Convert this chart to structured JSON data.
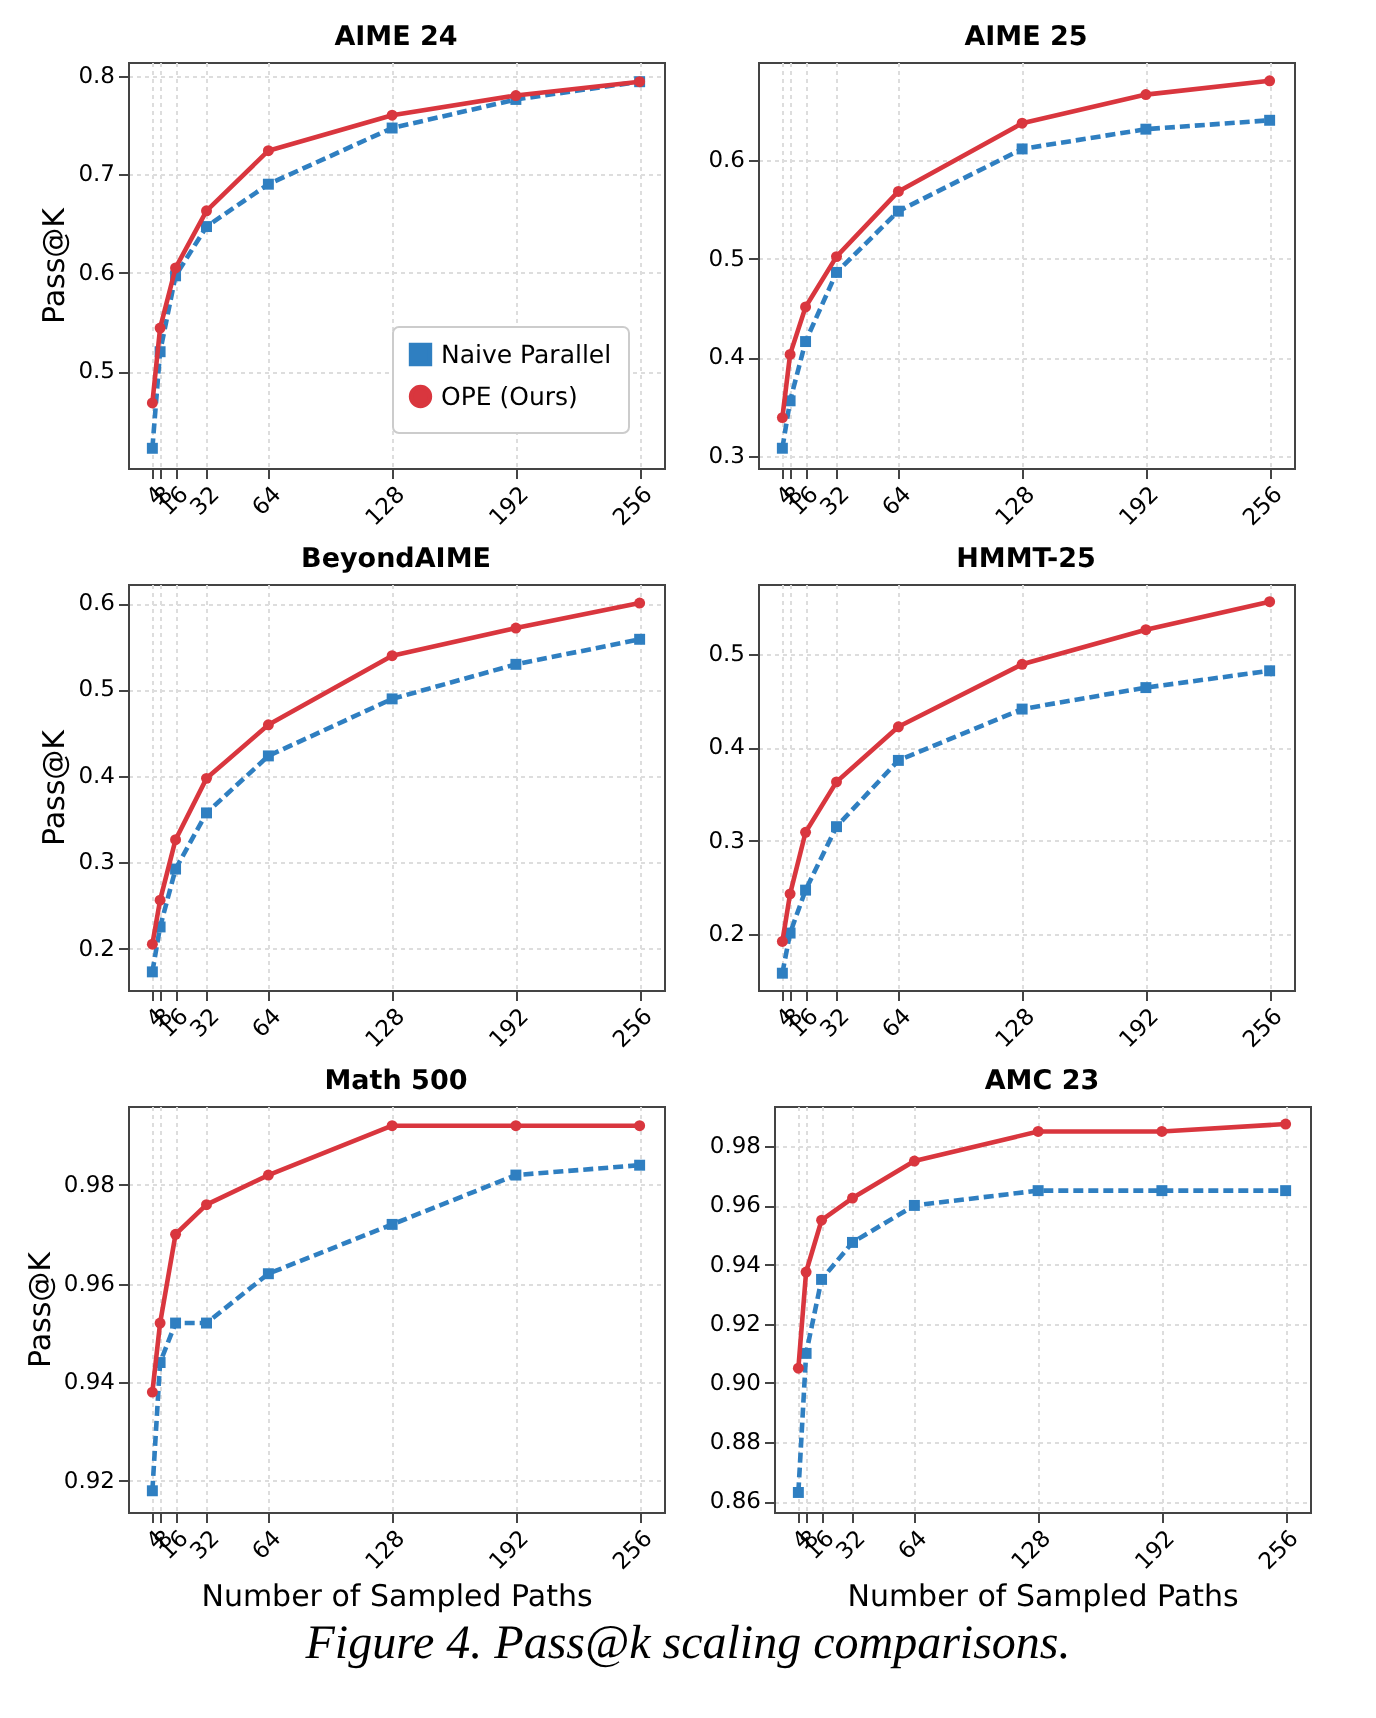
{
  "chart_data": [
    {
      "type": "line",
      "title": "AIME 24",
      "ylabel": "Pass@K",
      "x": [
        4,
        8,
        16,
        32,
        64,
        128,
        192,
        256
      ],
      "xlim": [
        -8.6,
        268.6
      ],
      "xticks": [
        4,
        8,
        16,
        32,
        64,
        128,
        192,
        256
      ],
      "ylim": [
        0.402,
        0.814
      ],
      "yticks": [
        0.5,
        0.6,
        0.7,
        0.8
      ],
      "grid": true,
      "legend": "bottom right",
      "series": [
        {
          "name": "Naive Parallel",
          "color": "#2f7fc1",
          "marker": "square",
          "line_style": "dashed",
          "values": [
            0.422,
            0.52,
            0.597,
            0.647,
            0.69,
            0.747,
            0.776,
            0.794
          ]
        },
        {
          "name": "OPE (Ours)",
          "color": "#d9363e",
          "marker": "circle",
          "line_style": "solid",
          "values": [
            0.468,
            0.544,
            0.605,
            0.663,
            0.724,
            0.76,
            0.78,
            0.794
          ]
        }
      ]
    },
    {
      "type": "line",
      "title": "AIME 25",
      "x": [
        4,
        8,
        16,
        32,
        64,
        128,
        192,
        256
      ],
      "xlim": [
        -8.6,
        268.6
      ],
      "xticks": [
        4,
        8,
        16,
        32,
        64,
        128,
        192,
        256
      ],
      "ylim": [
        0.288,
        0.699
      ],
      "yticks": [
        0.3,
        0.4,
        0.5,
        0.6
      ],
      "grid": true,
      "series": [
        {
          "color": "#2f7fc1",
          "marker": "square",
          "line_style": "dashed",
          "values": [
            0.308,
            0.356,
            0.416,
            0.486,
            0.548,
            0.611,
            0.631,
            0.64
          ]
        },
        {
          "color": "#d9363e",
          "marker": "circle",
          "line_style": "solid",
          "values": [
            0.339,
            0.403,
            0.451,
            0.502,
            0.568,
            0.637,
            0.666,
            0.68
          ]
        }
      ]
    },
    {
      "type": "line",
      "title": "BeyondAIME",
      "ylabel": "Pass@K",
      "x": [
        4,
        8,
        16,
        32,
        64,
        128,
        192,
        256
      ],
      "xlim": [
        -8.6,
        268.6
      ],
      "xticks": [
        4,
        8,
        16,
        32,
        64,
        128,
        192,
        256
      ],
      "ylim": [
        0.152,
        0.622
      ],
      "yticks": [
        0.2,
        0.3,
        0.4,
        0.5,
        0.6
      ],
      "grid": true,
      "series": [
        {
          "color": "#2f7fc1",
          "marker": "square",
          "line_style": "dashed",
          "values": [
            0.173,
            0.225,
            0.292,
            0.357,
            0.423,
            0.489,
            0.529,
            0.558
          ]
        },
        {
          "color": "#d9363e",
          "marker": "circle",
          "line_style": "solid",
          "values": [
            0.205,
            0.256,
            0.326,
            0.397,
            0.459,
            0.539,
            0.571,
            0.6
          ]
        }
      ]
    },
    {
      "type": "line",
      "title": "HMMT-25",
      "x": [
        4,
        8,
        16,
        32,
        64,
        128,
        192,
        256
      ],
      "xlim": [
        -8.6,
        268.6
      ],
      "xticks": [
        4,
        8,
        16,
        32,
        64,
        128,
        192,
        256
      ],
      "ylim": [
        0.14,
        0.575
      ],
      "yticks": [
        0.2,
        0.3,
        0.4,
        0.5
      ],
      "grid": true,
      "series": [
        {
          "color": "#2f7fc1",
          "marker": "square",
          "line_style": "dashed",
          "values": [
            0.158,
            0.201,
            0.247,
            0.315,
            0.386,
            0.441,
            0.464,
            0.482
          ]
        },
        {
          "color": "#d9363e",
          "marker": "circle",
          "line_style": "solid",
          "values": [
            0.192,
            0.243,
            0.309,
            0.363,
            0.422,
            0.489,
            0.526,
            0.556
          ]
        }
      ]
    },
    {
      "type": "line",
      "title": "Math 500",
      "xlabel": "Number of Sampled Paths",
      "ylabel": "Pass@K",
      "x": [
        4,
        8,
        16,
        32,
        64,
        128,
        192,
        256
      ],
      "xlim": [
        -8.6,
        268.6
      ],
      "xticks": [
        4,
        8,
        16,
        32,
        64,
        128,
        192,
        256
      ],
      "ylim": [
        0.9137,
        0.996
      ],
      "yticks": [
        0.92,
        0.94,
        0.96,
        0.98
      ],
      "grid": true,
      "series": [
        {
          "color": "#2f7fc1",
          "marker": "square",
          "line_style": "dashed",
          "values": [
            0.918,
            0.944,
            0.952,
            0.952,
            0.962,
            0.972,
            0.982,
            0.984
          ]
        },
        {
          "color": "#d9363e",
          "marker": "circle",
          "line_style": "solid",
          "values": [
            0.938,
            0.952,
            0.97,
            0.976,
            0.982,
            0.992,
            0.992,
            0.992
          ]
        }
      ]
    },
    {
      "type": "line",
      "title": "AMC 23",
      "xlabel": "Number of Sampled Paths",
      "x": [
        4,
        8,
        16,
        32,
        64,
        128,
        192,
        256
      ],
      "xlim": [
        -8.6,
        268.6
      ],
      "xticks": [
        4,
        8,
        16,
        32,
        64,
        128,
        192,
        256
      ],
      "ylim": [
        0.8564,
        0.9936
      ],
      "yticks": [
        0.86,
        0.88,
        {
          "value": 0.9,
          "label": "0.90"
        },
        0.92,
        0.94,
        0.96,
        0.98
      ],
      "grid": true,
      "annotations": [
        "Figure 4. Pass@k scaling comparisons."
      ],
      "series": [
        {
          "color": "#2f7fc1",
          "marker": "square",
          "line_style": "dashed",
          "values": [
            0.863,
            0.91,
            0.935,
            0.9475,
            0.96,
            0.965,
            0.965,
            0.965
          ]
        },
        {
          "color": "#d9363e",
          "marker": "circle",
          "line_style": "solid",
          "values": [
            0.905,
            0.9375,
            0.955,
            0.9625,
            0.975,
            0.985,
            0.985,
            0.9875
          ]
        }
      ]
    }
  ]
}
